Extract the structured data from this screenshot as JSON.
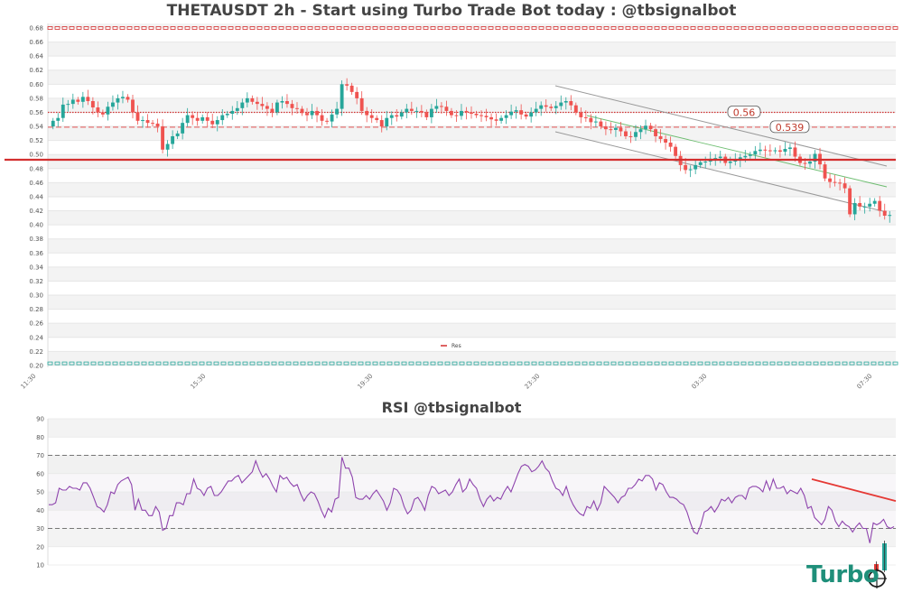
{
  "main_chart": {
    "title": "THETAUSDT 2h - Start using Turbo Trade Bot today : @tbsignalbot",
    "legend": "Res",
    "resistance_labels": [
      "0.56",
      "0.539"
    ]
  },
  "rsi_chart": {
    "title": "RSI @tbsignalbot"
  },
  "logo": {
    "text": "Turbo"
  },
  "colors": {
    "up": "#26a69a",
    "down": "#ef5350",
    "resistance": "#d32f2f",
    "rsi_line": "#8e44ad",
    "rsi_trend": "#e53935",
    "channel": "#888888",
    "channel_mid": "#4caf50"
  },
  "chart_data": [
    {
      "type": "candlestick",
      "title": "THETAUSDT 2h - Start using Turbo Trade Bot today : @tbsignalbot",
      "xlabel": "",
      "ylabel": "",
      "ylim": [
        0.2,
        0.68
      ],
      "y_ticks": [
        "0.20",
        "0.22",
        "0.24",
        "0.26",
        "0.28",
        "0.30",
        "0.32",
        "0.34",
        "0.36",
        "0.38",
        "0.40",
        "0.42",
        "0.44",
        "0.46",
        "0.48",
        "0.50",
        "0.52",
        "0.54",
        "0.56",
        "0.58",
        "0.60",
        "0.62",
        "0.64",
        "0.66",
        "0.68"
      ],
      "x_ticks": [
        "11:30",
        "15:30",
        "19:30",
        "23:30",
        "03:30",
        "07:30"
      ],
      "grid": true,
      "legend": [
        "Res"
      ],
      "legend_position": "bottom-center",
      "horizontal_lines": [
        {
          "value": 0.68,
          "style": "dashed-pattern",
          "color": "#d32f2f"
        },
        {
          "value": 0.56,
          "style": "dotted",
          "color": "#d32f2f",
          "label": "0.56"
        },
        {
          "value": 0.539,
          "style": "dashed",
          "color": "#d32f2f",
          "label": "0.539"
        },
        {
          "value": 0.492,
          "style": "solid",
          "color": "#d32f2f"
        },
        {
          "value": 0.203,
          "style": "dashed-pattern",
          "color": "#26a69a"
        }
      ],
      "channel": {
        "upper": [
          [
            0.595,
            0.483
          ]
        ],
        "middle": [
          [
            0.575,
            0.453
          ]
        ],
        "lower": [
          [
            0.54,
            0.41
          ]
        ],
        "x_range": [
          "~22:30",
          "~07:30"
        ]
      },
      "close_series": [
        0.548,
        0.552,
        0.571,
        0.572,
        0.578,
        0.575,
        0.582,
        0.576,
        0.567,
        0.56,
        0.557,
        0.568,
        0.574,
        0.58,
        0.582,
        0.578,
        0.56,
        0.548,
        0.549,
        0.545,
        0.544,
        0.54,
        0.507,
        0.515,
        0.526,
        0.53,
        0.545,
        0.556,
        0.552,
        0.548,
        0.553,
        0.548,
        0.543,
        0.549,
        0.556,
        0.558,
        0.562,
        0.566,
        0.574,
        0.58,
        0.575,
        0.572,
        0.569,
        0.565,
        0.56,
        0.574,
        0.576,
        0.572,
        0.566,
        0.565,
        0.559,
        0.556,
        0.562,
        0.556,
        0.548,
        0.547,
        0.557,
        0.565,
        0.6,
        0.598,
        0.589,
        0.58,
        0.562,
        0.556,
        0.552,
        0.549,
        0.54,
        0.552,
        0.556,
        0.554,
        0.56,
        0.565,
        0.562,
        0.562,
        0.56,
        0.553,
        0.565,
        0.569,
        0.568,
        0.562,
        0.556,
        0.555,
        0.562,
        0.56,
        0.558,
        0.556,
        0.555,
        0.553,
        0.55,
        0.548,
        0.552,
        0.556,
        0.561,
        0.563,
        0.557,
        0.554,
        0.56,
        0.565,
        0.57,
        0.568,
        0.566,
        0.569,
        0.574,
        0.576,
        0.57,
        0.56,
        0.553,
        0.552,
        0.546,
        0.547,
        0.54,
        0.536,
        0.535,
        0.538,
        0.533,
        0.526,
        0.525,
        0.532,
        0.536,
        0.541,
        0.536,
        0.526,
        0.522,
        0.517,
        0.511,
        0.498,
        0.485,
        0.478,
        0.479,
        0.485,
        0.489,
        0.49,
        0.494,
        0.495,
        0.497,
        0.488,
        0.49,
        0.492,
        0.496,
        0.498,
        0.5,
        0.505,
        0.507,
        0.506,
        0.505,
        0.506,
        0.504,
        0.508,
        0.51,
        0.497,
        0.488,
        0.487,
        0.49,
        0.501,
        0.486,
        0.466,
        0.461,
        0.46,
        0.459,
        0.452,
        0.415,
        0.431,
        0.426,
        0.426,
        0.43,
        0.434,
        0.42,
        0.413,
        0.414
      ]
    },
    {
      "type": "line",
      "title": "RSI @tbsignalbot",
      "ylim": [
        10,
        90
      ],
      "y_ticks": [
        "10",
        "20",
        "30",
        "40",
        "50",
        "60",
        "70",
        "80",
        "90"
      ],
      "reference_lines": [
        30,
        70
      ],
      "series": [
        {
          "name": "RSI",
          "values": [
            43,
            43,
            44,
            52,
            51,
            51,
            53,
            52,
            52,
            51,
            55,
            55,
            52,
            47,
            42,
            41,
            39,
            43,
            50,
            49,
            54,
            56,
            57,
            58,
            54,
            40,
            46,
            40,
            40,
            37,
            37,
            42,
            39,
            29,
            30,
            37,
            37,
            44,
            44,
            43,
            49,
            49,
            57,
            52,
            51,
            48,
            52,
            53,
            48,
            48,
            50,
            53,
            56,
            56,
            58,
            59,
            55,
            57,
            59,
            61,
            67,
            62,
            58,
            60,
            57,
            53,
            50,
            59,
            57,
            58,
            55,
            53,
            54,
            49,
            45,
            48,
            50,
            49,
            45,
            40,
            36,
            41,
            39,
            46,
            47,
            69,
            63,
            63,
            58,
            47,
            46,
            46,
            48,
            46,
            49,
            51,
            48,
            45,
            40,
            44,
            52,
            51,
            48,
            42,
            38,
            40,
            46,
            47,
            44,
            40,
            48,
            53,
            52,
            49,
            50,
            51,
            48,
            50,
            54,
            57,
            50,
            52,
            57,
            54,
            52,
            46,
            42,
            46,
            48,
            45,
            47,
            46,
            50,
            53,
            50,
            55,
            60,
            64,
            65,
            64,
            61,
            62,
            64,
            67,
            63,
            61,
            56,
            52,
            51,
            48,
            53,
            47,
            43,
            40,
            38,
            37,
            42,
            41,
            45,
            40,
            44,
            53,
            51,
            49,
            47,
            44,
            47,
            48,
            52,
            52,
            54,
            57,
            56,
            59,
            59,
            57,
            51,
            55,
            54,
            50,
            47,
            47,
            46,
            44,
            43,
            39,
            33,
            28,
            27,
            32,
            39,
            40,
            42,
            39,
            42,
            46,
            45,
            47,
            44,
            47,
            48,
            48,
            46,
            52,
            53,
            53,
            52,
            50,
            56,
            51,
            57,
            52,
            52,
            53,
            49,
            51,
            50,
            49,
            52,
            48,
            41,
            42,
            36,
            34,
            32,
            35,
            42,
            40,
            34,
            31,
            34,
            32,
            31,
            28,
            31,
            33,
            30,
            30,
            22,
            33,
            32,
            33,
            35,
            31,
            30,
            31
          ]
        }
      ],
      "trendline": {
        "from": 57,
        "to": 45
      }
    }
  ]
}
